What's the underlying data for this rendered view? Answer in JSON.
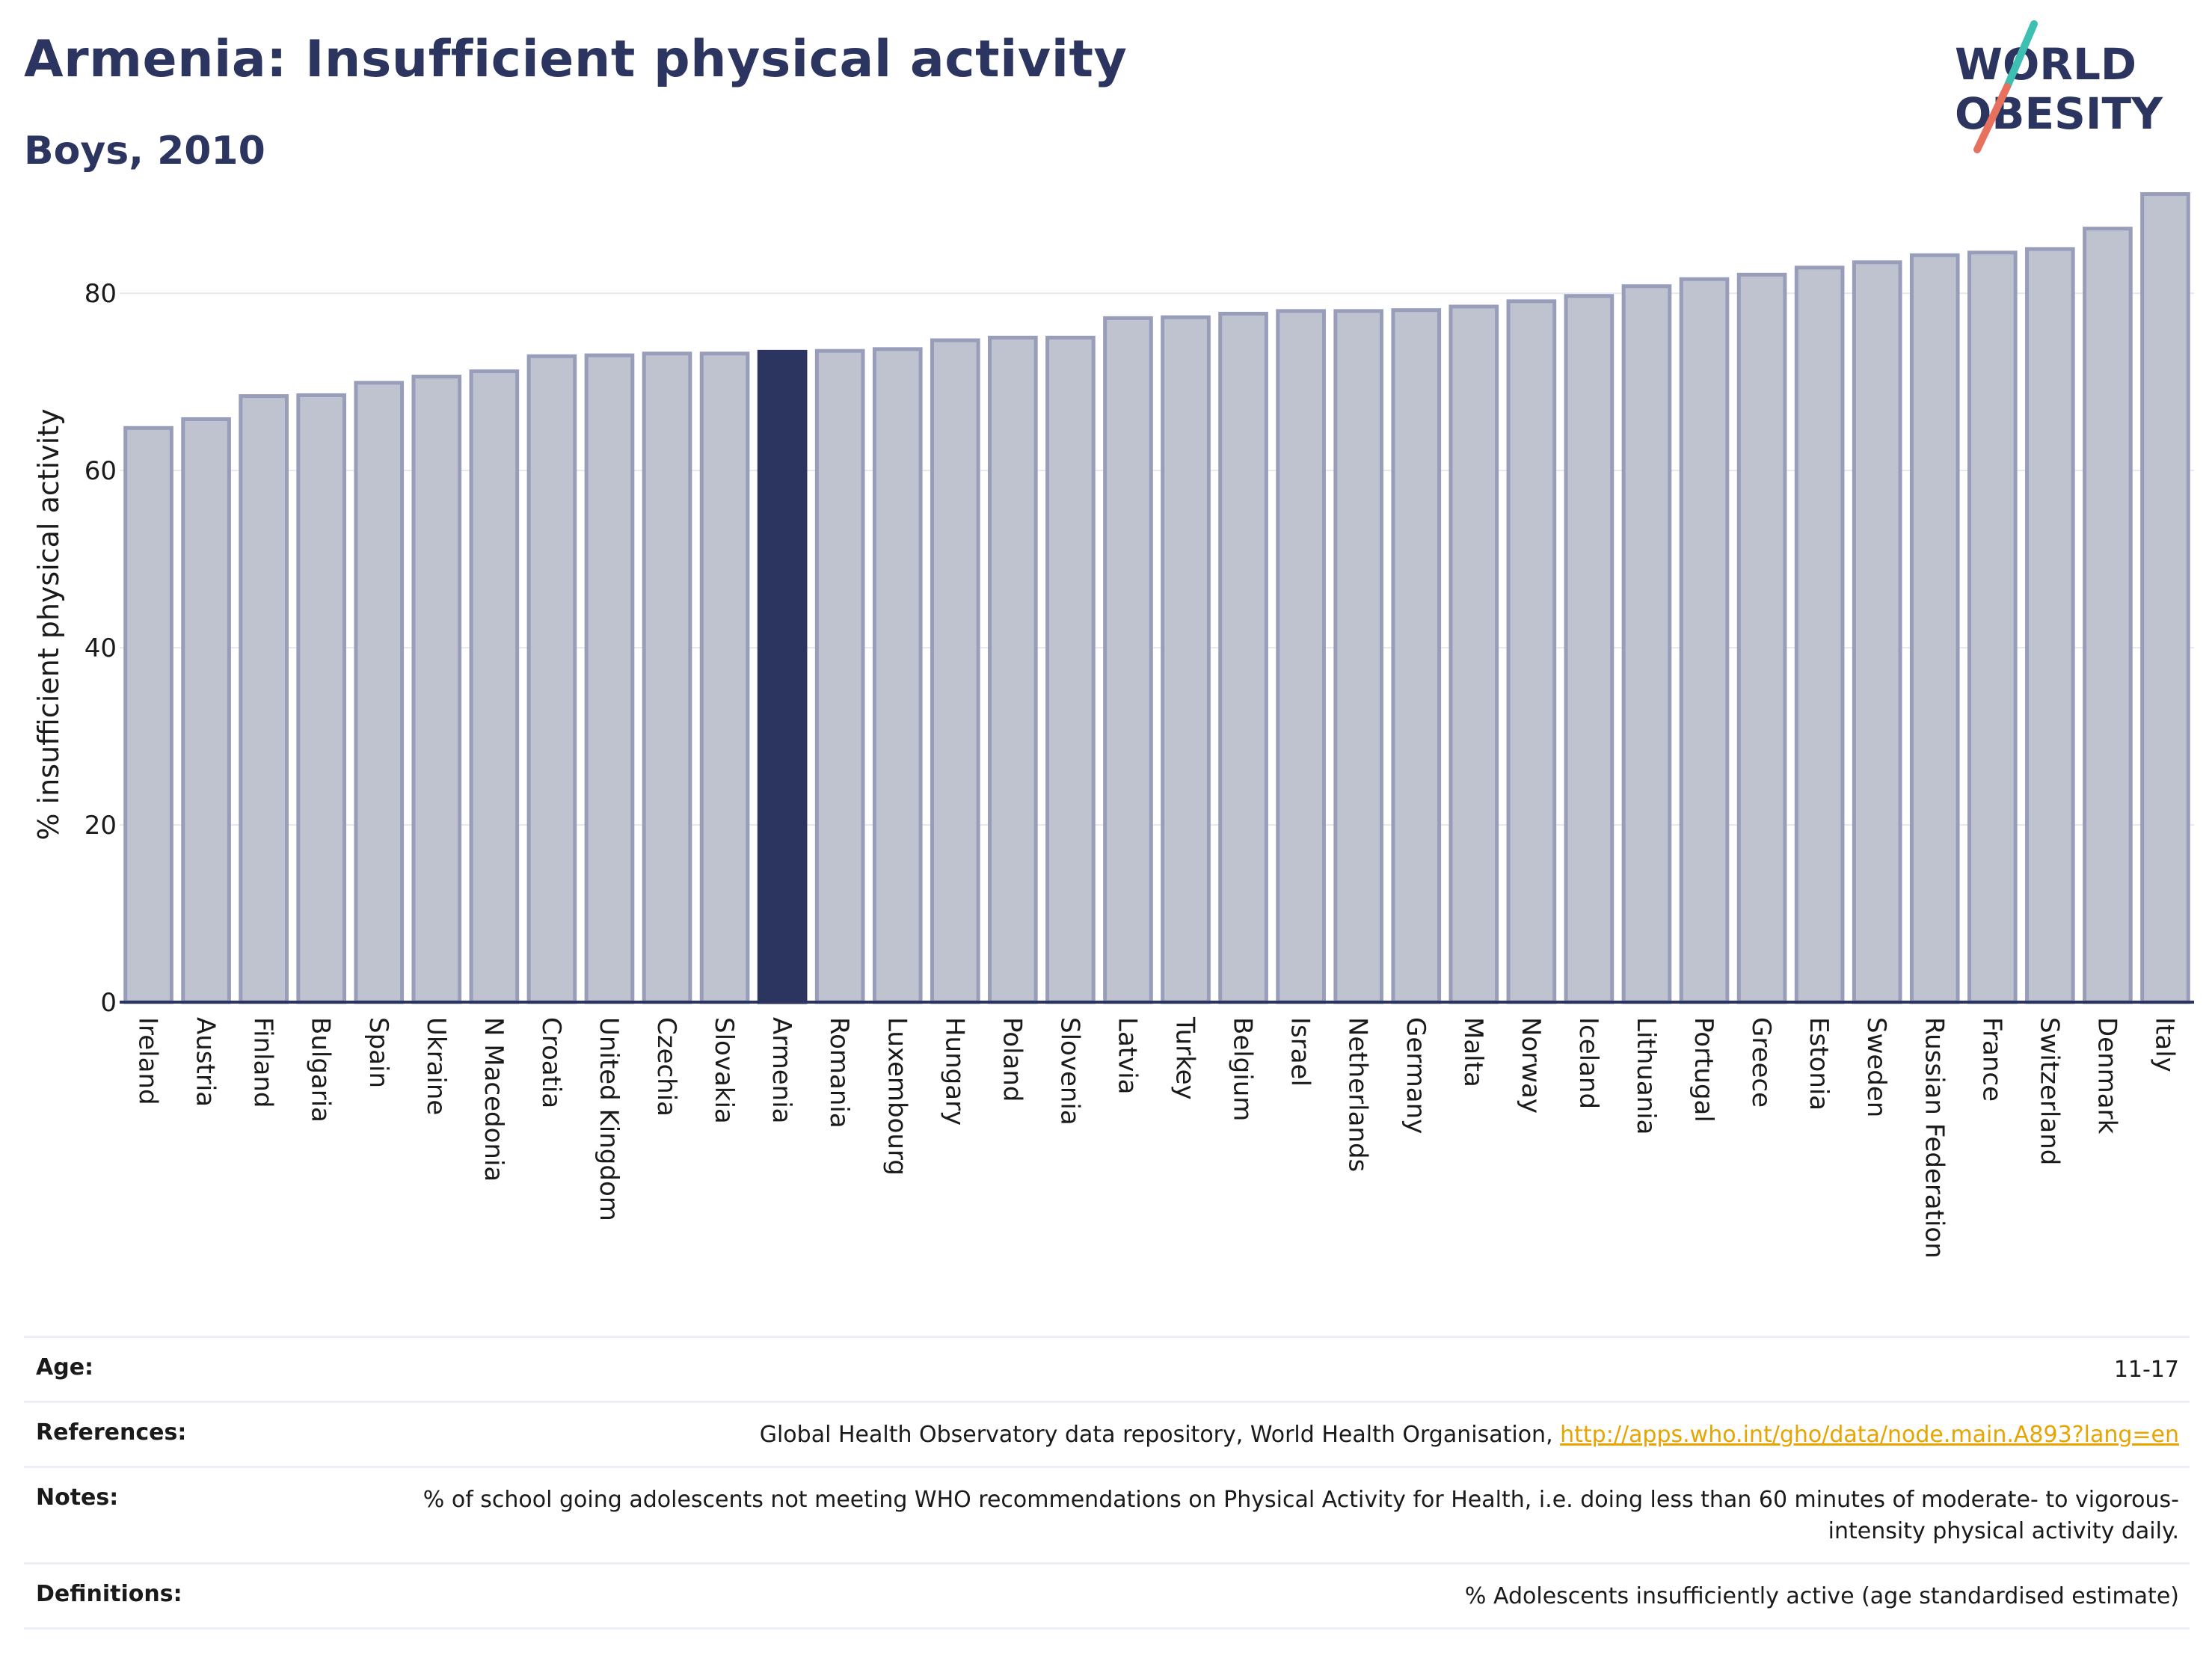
{
  "header": {
    "title": "Armenia: Insufficient physical activity",
    "subtitle": "Boys, 2010",
    "logo_line1": "WORLD",
    "logo_line2": "OBESITY"
  },
  "colors": {
    "title": "#2b3560",
    "bar_fill": "#bfc3d0",
    "bar_stroke": "#989dba",
    "highlight": "#2b3560",
    "link": "#e8a400",
    "logo_teal": "#3dbfb1",
    "logo_coral": "#e8715e"
  },
  "chart_data": {
    "type": "bar",
    "ylabel": "% insufficient physical activity",
    "xlabel": "",
    "ylim": [
      0,
      92
    ],
    "yticks": [
      0,
      20,
      40,
      60,
      80
    ],
    "grid": true,
    "highlight": "Armenia",
    "categories": [
      "Ireland",
      "Austria",
      "Finland",
      "Bulgaria",
      "Spain",
      "Ukraine",
      "N Macedonia",
      "Croatia",
      "United Kingdom",
      "Czechia",
      "Slovakia",
      "Armenia",
      "Romania",
      "Luxembourg",
      "Hungary",
      "Poland",
      "Slovenia",
      "Latvia",
      "Turkey",
      "Belgium",
      "Israel",
      "Netherlands",
      "Germany",
      "Malta",
      "Norway",
      "Iceland",
      "Lithuania",
      "Portugal",
      "Greece",
      "Estonia",
      "Sweden",
      "Russian Federation",
      "France",
      "Switzerland",
      "Denmark",
      "Italy"
    ],
    "values": [
      64.8,
      65.8,
      68.4,
      68.5,
      69.9,
      70.6,
      71.2,
      72.9,
      73.0,
      73.2,
      73.2,
      73.4,
      73.5,
      73.7,
      74.7,
      75.0,
      75.0,
      77.2,
      77.3,
      77.7,
      78.0,
      78.0,
      78.1,
      78.5,
      79.1,
      79.7,
      80.8,
      81.6,
      82.1,
      82.9,
      83.5,
      84.3,
      84.6,
      85.0,
      87.3,
      91.2
    ]
  },
  "meta": {
    "age_label": "Age:",
    "age_value": "11-17",
    "references_label": "References:",
    "references_text": "Global Health Observatory data repository, World Health Organisation, ",
    "references_link": "http://apps.who.int/gho/data/node.main.A893?lang=en",
    "notes_label": "Notes:",
    "notes_value": "% of school going adolescents not meeting WHO recommendations on Physical Activity for Health, i.e. doing less than 60 minutes of moderate- to vigorous-intensity physical activity daily.",
    "definitions_label": "Definitions:",
    "definitions_value": "% Adolescents insufficiently active (age standardised estimate)"
  }
}
